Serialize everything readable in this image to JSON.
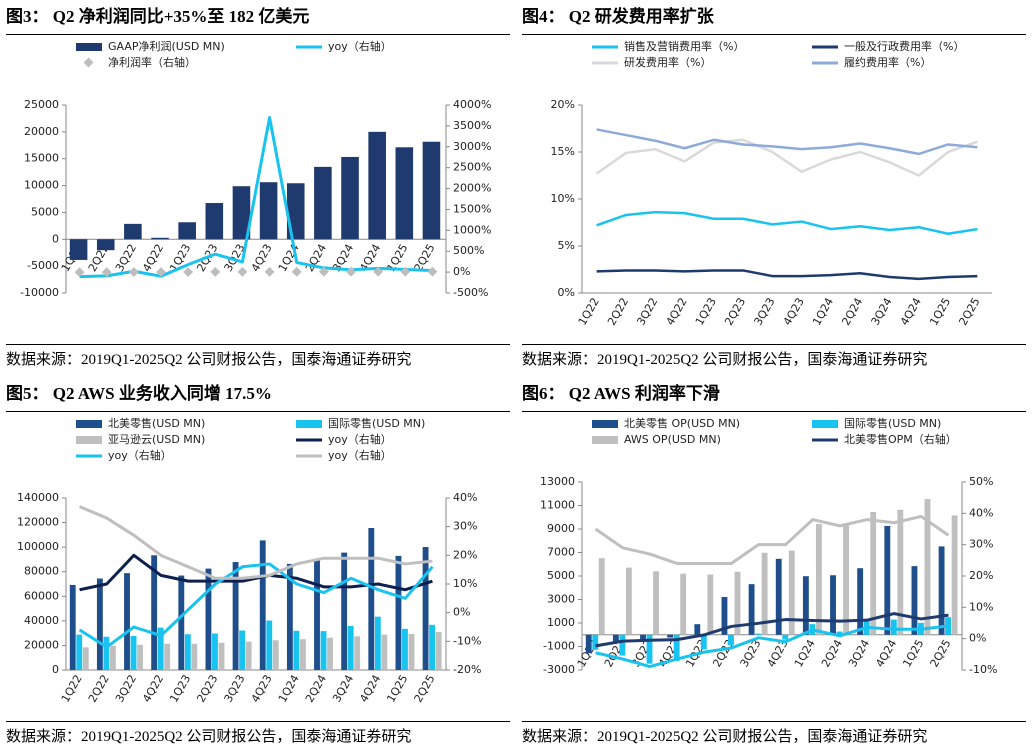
{
  "chart_data": [
    {
      "type": "bar",
      "title": "图3： Q2 净利润同比+35%至 182 亿美元",
      "source": "数据来源：2019Q1-2025Q2 公司财报公告，国泰海通证券研究",
      "categories": [
        "1Q22",
        "2Q22",
        "3Q22",
        "4Q22",
        "1Q23",
        "2Q23",
        "3Q23",
        "4Q23",
        "1Q24",
        "2Q24",
        "3Q24",
        "4Q24",
        "1Q25",
        "2Q25"
      ],
      "series": [
        {
          "name": "GAAP净利润(USD MN)",
          "type": "bar",
          "color": "#1f3a6e",
          "values": [
            -3844,
            -2028,
            2872,
            278,
            3172,
            6750,
            9879,
            10624,
            10431,
            13485,
            15328,
            20004,
            17127,
            18164
          ]
        },
        {
          "name": "yoy（右轴）",
          "type": "line",
          "axis": "y2",
          "color": "#19c3f0",
          "values": [
            -108,
            -90,
            20,
            -98,
            180,
            430,
            244,
            3700,
            229,
            100,
            55,
            88,
            64,
            35
          ]
        },
        {
          "name": "净利润率（右轴）",
          "type": "scatter",
          "axis": "y2",
          "color": "#bdbdbd",
          "values": [
            -3,
            -2,
            2,
            0,
            2,
            5,
            7,
            6,
            7,
            9,
            10,
            11,
            11,
            11
          ]
        }
      ],
      "ylim": [
        -10000,
        25000
      ],
      "yticks": [
        -10000,
        -5000,
        0,
        5000,
        10000,
        15000,
        20000,
        25000
      ],
      "y2lim": [
        -500,
        4000
      ],
      "y2ticks": [
        {
          "value": -500,
          "label": "-500%"
        },
        {
          "value": 0,
          "label": "0%"
        },
        {
          "value": 500,
          "label": "500%"
        },
        {
          "value": 1000,
          "label": "1000%"
        },
        {
          "value": 1500,
          "label": "1500%"
        },
        {
          "value": 2000,
          "label": "2000%"
        },
        {
          "value": 2500,
          "label": "2500%"
        },
        {
          "value": 3000,
          "label": "3000%"
        },
        {
          "value": 3500,
          "label": "3500%"
        },
        {
          "value": 4000,
          "label": "4000%"
        }
      ]
    },
    {
      "type": "line",
      "title": "图4： Q2 研发费用率扩张",
      "source": "数据来源：2019Q1-2025Q2 公司财报公告，国泰海通证券研究",
      "categories": [
        "1Q22",
        "2Q22",
        "3Q22",
        "4Q22",
        "1Q23",
        "2Q23",
        "3Q23",
        "4Q23",
        "1Q24",
        "2Q24",
        "3Q24",
        "4Q24",
        "1Q25",
        "2Q25"
      ],
      "series": [
        {
          "name": "销售及营销费用率（%）",
          "type": "line",
          "color": "#19c3f0",
          "values": [
            7.2,
            8.3,
            8.6,
            8.5,
            7.9,
            7.9,
            7.3,
            7.6,
            6.8,
            7.1,
            6.7,
            7.0,
            6.3,
            6.8
          ]
        },
        {
          "name": "一般及行政费用率（%）",
          "type": "line",
          "color": "#1f3a6e",
          "values": [
            2.3,
            2.4,
            2.4,
            2.3,
            2.4,
            2.4,
            1.8,
            1.8,
            1.9,
            2.1,
            1.7,
            1.5,
            1.7,
            1.8
          ]
        },
        {
          "name": "研发费用率（%）",
          "type": "line",
          "color": "#d9d9d9",
          "values": [
            12.7,
            14.9,
            15.3,
            14.0,
            16.0,
            16.3,
            15.0,
            12.9,
            14.2,
            15.0,
            13.9,
            12.5,
            15.0,
            16.1
          ]
        },
        {
          "name": "履约费用率（%）",
          "type": "line",
          "color": "#8eaadb",
          "values": [
            17.4,
            16.8,
            16.2,
            15.4,
            16.3,
            15.8,
            15.6,
            15.3,
            15.5,
            15.9,
            15.4,
            14.8,
            15.8,
            15.5
          ]
        }
      ],
      "ylim": [
        0,
        20
      ],
      "yticks": [
        {
          "value": 0,
          "label": "0%"
        },
        {
          "value": 5,
          "label": "5%"
        },
        {
          "value": 10,
          "label": "10%"
        },
        {
          "value": 15,
          "label": "15%"
        },
        {
          "value": 20,
          "label": "20%"
        }
      ]
    },
    {
      "type": "bar",
      "title": "图5： Q2 AWS 业务收入同增 17.5%",
      "source": "数据来源：2019Q1-2025Q2 公司财报公告，国泰海通证券研究",
      "categories": [
        "1Q22",
        "2Q22",
        "3Q22",
        "4Q22",
        "1Q23",
        "2Q23",
        "3Q23",
        "4Q23",
        "1Q24",
        "2Q24",
        "3Q24",
        "4Q24",
        "1Q25",
        "2Q25"
      ],
      "series": [
        {
          "name": "北美零售(USD MN)",
          "type": "bar",
          "color": "#1f4e8c",
          "values": [
            69244,
            74430,
            78843,
            93363,
            76881,
            82546,
            87887,
            105514,
            86341,
            90033,
            95537,
            115586,
            92887,
            100068
          ]
        },
        {
          "name": "国际零售(USD MN)",
          "type": "bar",
          "color": "#19c3f0",
          "values": [
            28759,
            27065,
            27720,
            34463,
            29123,
            29697,
            32137,
            40243,
            31935,
            31663,
            35888,
            43420,
            33513,
            36761
          ]
        },
        {
          "name": "亚马逊云(USD MN)",
          "type": "bar",
          "color": "#bfbfbf",
          "values": [
            18441,
            19739,
            20538,
            21378,
            21354,
            22140,
            23059,
            24204,
            25037,
            26281,
            27452,
            28786,
            29267,
            30873
          ]
        },
        {
          "name": "yoy（右轴）",
          "type": "line",
          "axis": "y2",
          "color": "#0d1f4f",
          "values": [
            8,
            10,
            20,
            13,
            11,
            11,
            11,
            13,
            12,
            9,
            9,
            10,
            8,
            11
          ]
        },
        {
          "name": "yoy（右轴）",
          "type": "line",
          "axis": "y2",
          "color": "#19c3f0",
          "values": [
            -6,
            -12,
            -5,
            -8,
            1,
            10,
            16,
            17,
            10,
            7,
            12,
            8,
            5,
            16
          ]
        },
        {
          "name": "yoy（右轴）",
          "type": "line",
          "axis": "y2",
          "color": "#bfbfbf",
          "values": [
            37,
            33,
            27,
            20,
            16,
            12,
            12,
            13,
            17,
            19,
            19,
            19,
            17,
            18
          ]
        }
      ],
      "ylim": [
        0,
        140000
      ],
      "yticks": [
        0,
        20000,
        40000,
        60000,
        80000,
        100000,
        120000,
        140000
      ],
      "y2lim": [
        -20,
        40
      ],
      "y2ticks": [
        {
          "value": -20,
          "label": "-20%"
        },
        {
          "value": -10,
          "label": "-10%"
        },
        {
          "value": 0,
          "label": "0%"
        },
        {
          "value": 10,
          "label": "10%"
        },
        {
          "value": 20,
          "label": "20%"
        },
        {
          "value": 30,
          "label": "30%"
        },
        {
          "value": 40,
          "label": "40%"
        }
      ]
    },
    {
      "type": "bar",
      "title": "图6： Q2 AWS 利润率下滑",
      "source": "数据来源：2019Q1-2025Q2 公司财报公告，国泰海通证券研究",
      "categories": [
        "1Q22",
        "2Q22",
        "3Q22",
        "4Q22",
        "1Q23",
        "2Q23",
        "3Q23",
        "4Q23",
        "1Q24",
        "2Q24",
        "3Q24",
        "4Q24",
        "1Q25",
        "2Q25"
      ],
      "series": [
        {
          "name": "北美零售 OP(USD MN)",
          "type": "bar",
          "color": "#1f4e8c",
          "values": [
            -1568,
            -627,
            -412,
            -240,
            898,
            3211,
            4307,
            6461,
            4983,
            5065,
            5663,
            9256,
            5841,
            7517
          ]
        },
        {
          "name": "国际零售(USD MN)",
          "type": "bar",
          "color": "#19c3f0",
          "values": [
            -1281,
            -1771,
            -2465,
            -2228,
            -1247,
            -895,
            95,
            -419,
            903,
            273,
            1297,
            1293,
            1017,
            1494
          ]
        },
        {
          "name": "AWS OP(USD MN)",
          "type": "bar",
          "color": "#bfbfbf",
          "values": [
            6518,
            5715,
            5403,
            5205,
            5123,
            5365,
            6976,
            7167,
            9421,
            9334,
            10447,
            10632,
            11547,
            10160
          ]
        },
        {
          "name": "北美零售OPM（右轴）",
          "type": "line",
          "axis": "y2",
          "color": "#1f3a6e",
          "values": [
            -2.3,
            -0.8,
            -0.5,
            -0.3,
            1.2,
            3.9,
            4.9,
            6.1,
            5.8,
            5.6,
            5.9,
            8.0,
            6.3,
            7.5
          ]
        },
        {
          "type": "line",
          "axis": "y2",
          "color": "#19c3f0",
          "values": [
            -4.5,
            -6.5,
            -8.9,
            -6.5,
            -4.3,
            -3.0,
            0.3,
            -1.0,
            2.8,
            0.9,
            3.6,
            3.0,
            3.0,
            4.1
          ]
        },
        {
          "type": "line",
          "axis": "y2",
          "color": "#bfbfbf",
          "values": [
            35,
            29,
            27,
            24,
            24,
            24,
            30,
            30,
            38,
            36,
            38,
            37,
            39,
            33
          ]
        }
      ],
      "ylim": [
        -3000,
        13000
      ],
      "yticks": [
        -3000,
        -1000,
        1000,
        3000,
        5000,
        7000,
        9000,
        11000,
        13000
      ],
      "y2lim": [
        -10,
        50
      ],
      "y2ticks": [
        {
          "value": -10,
          "label": "-10%"
        },
        {
          "value": 0,
          "label": "0%"
        },
        {
          "value": 10,
          "label": "10%"
        },
        {
          "value": 20,
          "label": "20%"
        },
        {
          "value": 30,
          "label": "30%"
        },
        {
          "value": 40,
          "label": "40%"
        },
        {
          "value": 50,
          "label": "50%"
        }
      ]
    }
  ]
}
